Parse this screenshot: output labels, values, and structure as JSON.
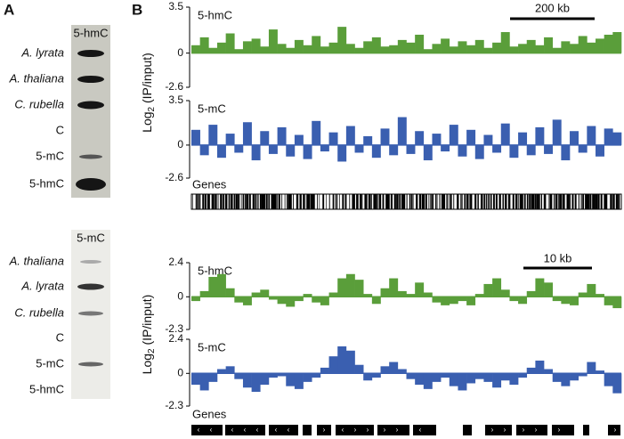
{
  "panel_a": {
    "label": "A",
    "blots": [
      {
        "antibody": "5-hmC",
        "lanes": [
          "A. lyrata",
          "A. thaliana",
          "C. rubella",
          "C",
          "5-mC",
          "5-hmC"
        ]
      },
      {
        "antibody": "5-mC",
        "lanes": [
          "A. thaliana",
          "A. lyrata",
          "C. rubella",
          "C",
          "5-mC",
          "5-hmC"
        ]
      }
    ]
  },
  "panel_b": {
    "label": "B",
    "views": [
      {
        "y_label": {
          "base": "Log",
          "sub": "2",
          "rest": " (IP/input)"
        },
        "scale_bar": "200 kb",
        "genes_label": "Genes",
        "tracks": [
          {
            "name": "5-hmC",
            "color": "#5a9e3a",
            "ylim": [
              -2.6,
              3.5
            ],
            "yticks": [
              3.5,
              0,
              -2.6
            ],
            "values": [
              0.6,
              1.2,
              0.4,
              0.8,
              1.5,
              0.3,
              0.9,
              1.1,
              0.5,
              1.8,
              0.7,
              0.4,
              1.0,
              0.6,
              1.3,
              0.5,
              0.8,
              2.0,
              0.7,
              0.4,
              0.9,
              1.2,
              0.5,
              0.6,
              1.0,
              0.8,
              1.4,
              0.3,
              0.7,
              1.1,
              0.5,
              0.9,
              0.6,
              1.0,
              0.4,
              0.8,
              1.6,
              0.5,
              0.7,
              1.0,
              0.6,
              1.2,
              0.4,
              0.9,
              0.7,
              1.3,
              0.8,
              1.1,
              1.4,
              1.6
            ]
          },
          {
            "name": "5-mC",
            "color": "#3a5fb0",
            "ylim": [
              -2.6,
              3.5
            ],
            "yticks": [
              3.5,
              0,
              -2.6
            ],
            "values": [
              1.2,
              -0.8,
              1.6,
              -1.0,
              0.9,
              -0.6,
              1.8,
              -1.2,
              1.1,
              -0.7,
              1.4,
              -0.9,
              0.8,
              -1.1,
              1.9,
              -0.5,
              1.0,
              -1.3,
              1.5,
              -0.6,
              0.7,
              -1.0,
              1.3,
              -0.8,
              2.2,
              -0.7,
              1.1,
              -1.2,
              0.9,
              -0.5,
              1.6,
              -0.9,
              1.2,
              -1.1,
              0.8,
              -0.6,
              1.7,
              -1.0,
              1.0,
              -0.8,
              1.4,
              -0.7,
              2.0,
              -1.2,
              1.1,
              -0.6,
              1.5,
              -0.9,
              1.3,
              1.0
            ]
          }
        ]
      },
      {
        "y_label": {
          "base": "Log",
          "sub": "2",
          "rest": " (IP/input)"
        },
        "scale_bar": "10 kb",
        "genes_label": "Genes",
        "tracks": [
          {
            "name": "5-hmC",
            "color": "#5a9e3a",
            "ylim": [
              -2.3,
              2.4
            ],
            "yticks": [
              2.4,
              0,
              -2.3
            ],
            "values": [
              -0.3,
              0.4,
              1.4,
              1.6,
              0.6,
              -0.4,
              -0.6,
              0.3,
              0.5,
              -0.2,
              -0.5,
              -0.7,
              -0.3,
              0.2,
              -0.4,
              -0.6,
              0.3,
              1.3,
              1.6,
              1.2,
              0.2,
              -0.5,
              0.6,
              1.3,
              0.4,
              0.2,
              1.0,
              0.3,
              -0.4,
              -0.6,
              -0.5,
              -0.3,
              -0.6,
              0.2,
              0.9,
              1.3,
              0.5,
              -0.3,
              -0.5,
              0.4,
              1.3,
              1.0,
              -0.3,
              -0.5,
              -0.6,
              0.3,
              0.9,
              0.2,
              -0.6,
              -0.8
            ]
          },
          {
            "name": "5-mC",
            "color": "#3a5fb0",
            "ylim": [
              -2.3,
              2.4
            ],
            "yticks": [
              2.4,
              0,
              -2.3
            ],
            "values": [
              -0.8,
              -1.2,
              -0.6,
              0.3,
              0.5,
              -0.4,
              -1.0,
              -1.3,
              -0.8,
              -0.3,
              -0.2,
              -0.9,
              -1.1,
              -0.6,
              -0.3,
              0.4,
              1.2,
              1.9,
              1.6,
              0.6,
              -0.5,
              -0.3,
              0.5,
              0.8,
              0.3,
              -0.4,
              -0.8,
              -1.1,
              -0.6,
              -0.3,
              -0.9,
              -1.2,
              -0.7,
              -0.4,
              -0.6,
              -1.0,
              -0.5,
              -0.8,
              -0.3,
              0.4,
              0.9,
              0.3,
              -0.6,
              -0.9,
              -0.5,
              -0.2,
              0.8,
              0.2,
              -0.9,
              -1.4
            ]
          }
        ]
      }
    ]
  }
}
